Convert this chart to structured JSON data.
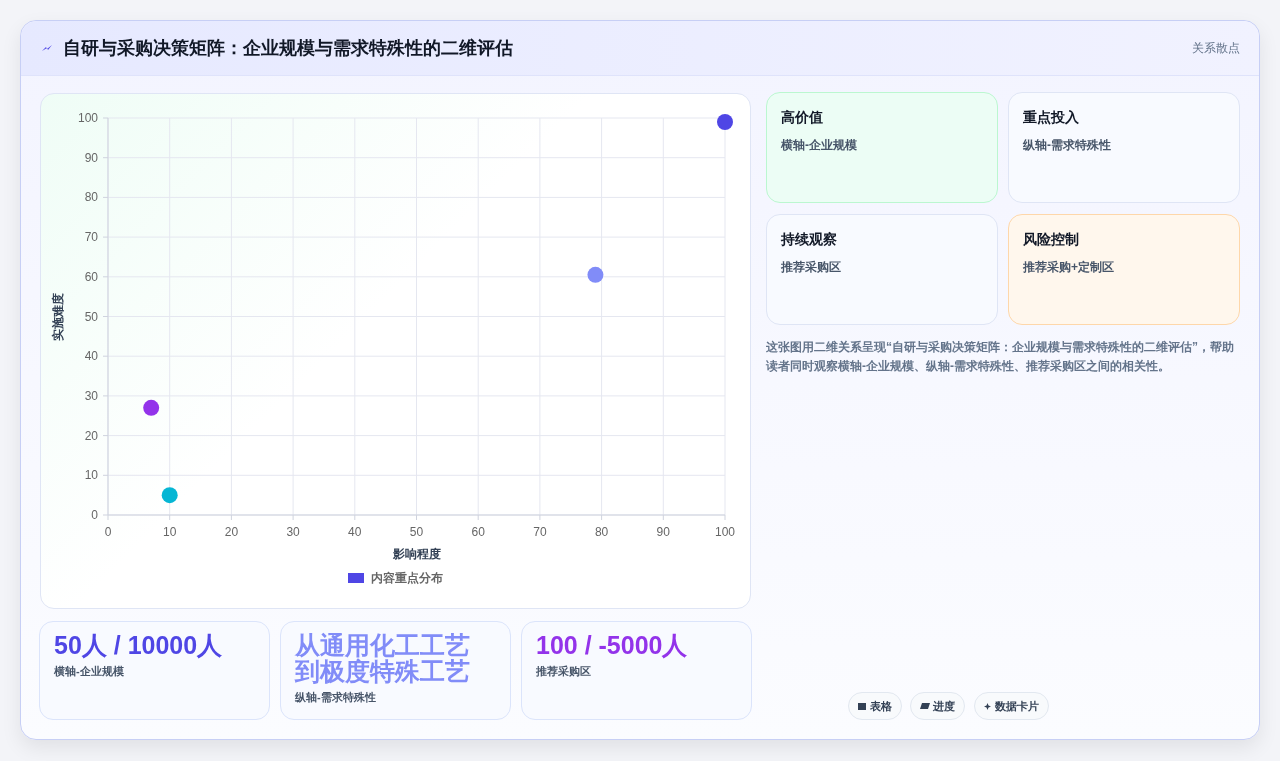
{
  "chart_data": [
    {
      "type": "scatter",
      "title": "自研与采购决策矩阵：企业规模与需求特殊性的二维评估",
      "xlabel": "影响程度",
      "ylabel": "实施难度",
      "series": [
        {
          "name": "内容重点分布",
          "color": "#4f46e5",
          "x": [
            7,
            10,
            79,
            100
          ],
          "values": [
            27,
            5,
            60.5,
            99
          ],
          "colors": [
            "#9333ea",
            "#06b6d4",
            "#818cf8",
            "#4f46e5"
          ]
        }
      ],
      "xlim": [
        0,
        100
      ],
      "xticks": [
        0,
        10,
        20,
        30,
        40,
        50,
        60,
        70,
        80,
        90,
        100
      ],
      "ylim": [
        0,
        100
      ],
      "yticks": [
        0,
        10,
        20,
        30,
        40,
        50,
        60,
        70,
        80,
        90,
        100
      ],
      "grid": true,
      "legend": "bottom",
      "marker": "circle"
    },
    {
      "type": "other",
      "annotations": [
        "高价值",
        "横轴-企业规模",
        "重点投入",
        "纵轴-需求特殊性",
        "持续观察",
        "推荐采购区",
        "风险控制",
        "推荐采购+定制区",
        "这张图用二维关系呈现“自研与采购决策矩阵：企业规模与需求特殊性的二维评估”，帮助读者同时观察横轴-企业规模、纵轴-需求特殊性、推荐采购区之间的相关性。",
        "50人 / 10000人",
        "横轴-企业规模",
        "从通用化工工艺到极度特殊工艺",
        "纵轴-需求特殊性",
        "100 / -5000人",
        "推荐采购区",
        "表格",
        "进度",
        "数据卡片",
        "关系散点"
      ]
    }
  ]
}
